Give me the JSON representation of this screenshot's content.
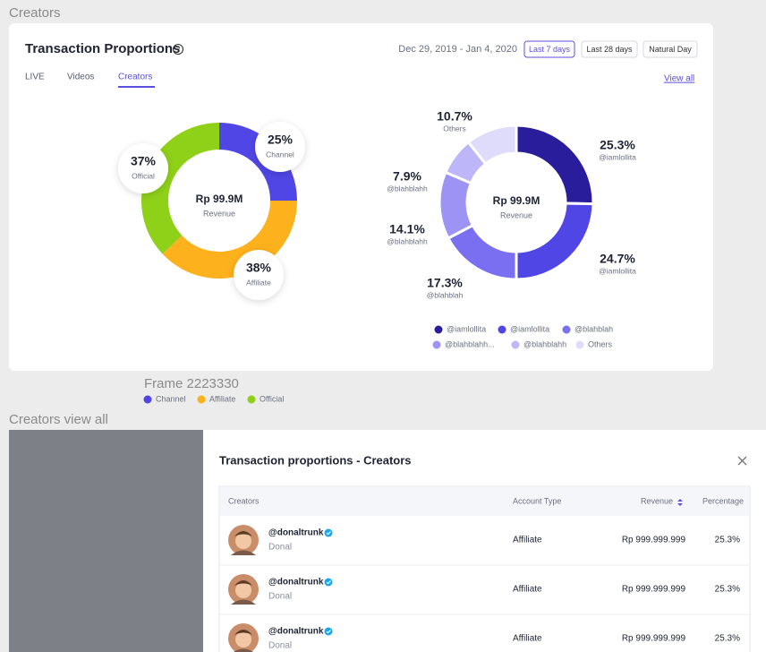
{
  "page_label": "Creators",
  "card": {
    "title": "Transaction Proportions",
    "date_range": "Dec 29, 2019 - Jan 4, 2020",
    "range_buttons": [
      "Last 7 days",
      "Last 28 days",
      "Natural Day"
    ],
    "tabs": [
      "LIVE",
      "Videos",
      "Creators"
    ],
    "view_all": "View all"
  },
  "chart_data": [
    {
      "type": "donut",
      "center_value": "Rp 99.9M",
      "center_label": "Revenue",
      "categories": [
        "Channel",
        "Affiliate",
        "Official"
      ],
      "values": [
        25,
        38,
        37
      ],
      "value_labels": [
        "25%",
        "38%",
        "37%"
      ],
      "colors": [
        "#4f46e5",
        "#fdb11c",
        "#8fd019"
      ]
    },
    {
      "type": "donut",
      "center_value": "Rp 99.9M",
      "center_label": "Revenue",
      "categories": [
        "@iamlollita",
        "@iamlollita",
        "@blahblah",
        "@blahblahh",
        "@blahblahh",
        "Others"
      ],
      "legend": [
        "@iamlollita",
        "@iamlollita",
        "@blahblah",
        "@blahblahh...",
        "@blahblahh",
        "Others"
      ],
      "values": [
        25.3,
        24.7,
        17.3,
        14.1,
        7.9,
        10.7
      ],
      "value_labels": [
        "25.3%",
        "24.7%",
        "17.3%",
        "14.1%",
        "7.9%",
        "10.7%"
      ],
      "colors": [
        "#2a1d9c",
        "#4f46e5",
        "#7a6ef1",
        "#9d93f5",
        "#bdb6f8",
        "#dedbfb"
      ]
    }
  ],
  "frame": {
    "title": "Frame 2223330"
  },
  "view_all_section": {
    "label": "Creators view all",
    "title": "Transaction proportions - Creators",
    "table": {
      "columns": [
        "Creators",
        "Account Type",
        "Revenue",
        "Percentage"
      ],
      "rows": [
        [
          "@donaltrunk",
          "Donal",
          "Affiliate",
          "Rp 999.999.999",
          "25.3%"
        ],
        [
          "@donaltrunk",
          "Donal",
          "Affiliate",
          "Rp 999.999.999",
          "25.3%"
        ],
        [
          "@donaltrunk",
          "Donal",
          "Affiliate",
          "Rp 999.999.999",
          "25.3%"
        ]
      ]
    }
  }
}
